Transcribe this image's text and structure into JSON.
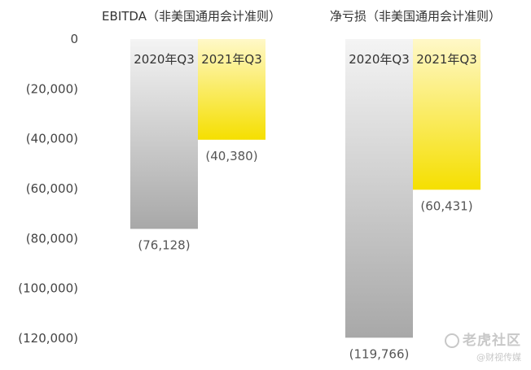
{
  "chart_data": {
    "type": "bar",
    "ylim": [
      -120000,
      0
    ],
    "yticks": [
      0,
      -20000,
      -40000,
      -60000,
      -80000,
      -100000,
      -120000
    ],
    "ytick_labels": [
      "0",
      "(20,000)",
      "(40,000)",
      "(60,000)",
      "(80,000)",
      "(100,000)",
      "(120,000)"
    ],
    "grid": false,
    "colors": {
      "q3_2020": "#a8a8a8",
      "q3_2021": "#f5df00"
    },
    "panels": [
      {
        "title": "EBITDA（非美国通用会计准则）",
        "categories": [
          "2020年Q3",
          "2021年Q3"
        ],
        "values": [
          -76128,
          -40380
        ],
        "value_labels": [
          "(76,128)",
          "(40,380)"
        ]
      },
      {
        "title": "净亏损（非美国通用会计准则）",
        "categories": [
          "2020年Q3",
          "2021年Q3"
        ],
        "values": [
          -119766,
          -60431
        ],
        "value_labels": [
          "(119,766)",
          "(60,431)"
        ]
      }
    ]
  },
  "watermark": {
    "main": "老虎社区",
    "sub": "@财视传媒"
  }
}
